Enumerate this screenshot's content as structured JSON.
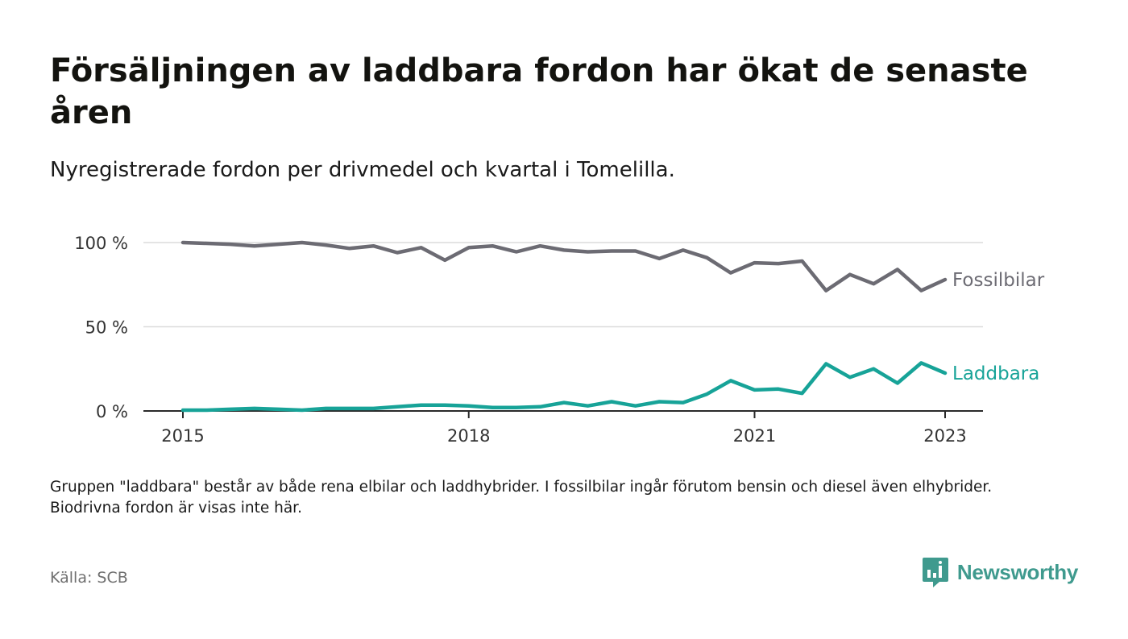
{
  "title": "Försäljningen av laddbara fordon har ökat de senaste åren",
  "subtitle": "Nyregistrerade fordon per drivmedel och kvartal i Tomelilla.",
  "footnote": "Gruppen \"laddbara\" består av både rena elbilar och laddhybrider. I fossilbilar ingår förutom bensin och diesel även elhybrider. Biodrivna fordon är visas inte här.",
  "source": "Källa: SCB",
  "brand": {
    "name": "Newsworthy",
    "icon": "bar-chart-logo-icon",
    "color": "#3f9a8e"
  },
  "chart_data": {
    "type": "line",
    "x_start": "2015-Q1",
    "ylim": [
      0,
      100
    ],
    "yticks": [
      {
        "value": 0,
        "label": "0 %"
      },
      {
        "value": 50,
        "label": "50 %"
      },
      {
        "value": 100,
        "label": "100 %"
      }
    ],
    "xticks": [
      {
        "year": 2015,
        "label": "2015"
      },
      {
        "year": 2018,
        "label": "2018"
      },
      {
        "year": 2021,
        "label": "2021"
      },
      {
        "year": 2023,
        "label": "2023"
      }
    ],
    "grid": true,
    "series": [
      {
        "name": "Fossilbilar",
        "color": "#6c6b73",
        "values": [
          100,
          99.5,
          99,
          98,
          99,
          100,
          98.5,
          96.5,
          98,
          94,
          97,
          89.5,
          97,
          98,
          94.5,
          98,
          95.5,
          94.5,
          95,
          95,
          90.5,
          95.5,
          91,
          82,
          88,
          87.5,
          89,
          71.5,
          81,
          75.5,
          84,
          71.5,
          78
        ]
      },
      {
        "name": "Laddbara",
        "color": "#17a398",
        "values": [
          0.5,
          0.5,
          1,
          1.5,
          1,
          0.5,
          1.5,
          1.5,
          1.5,
          2.5,
          3.5,
          3.5,
          3,
          2,
          2,
          2.5,
          5,
          3,
          5.5,
          3,
          5.5,
          5,
          10,
          18,
          12.5,
          13,
          10.5,
          28,
          20,
          25,
          16.5,
          28.5,
          22.5
        ]
      }
    ]
  }
}
